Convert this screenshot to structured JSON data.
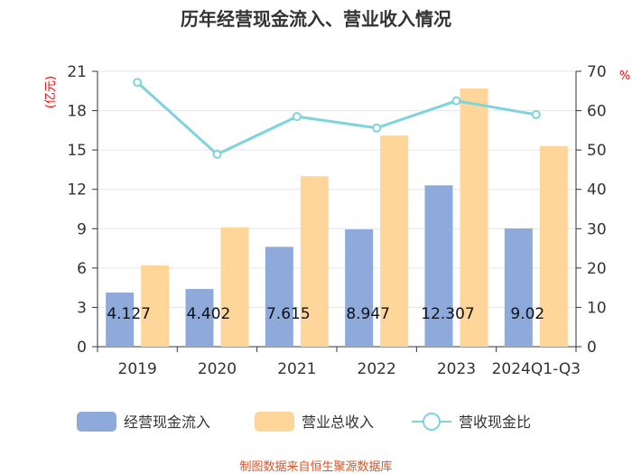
{
  "chart_data": {
    "type": "bar",
    "title": "历年经营现金流入、营业收入情况",
    "categories": [
      "2019",
      "2020",
      "2021",
      "2022",
      "2023",
      "2024Q1-Q3"
    ],
    "series": [
      {
        "name": "经营现金流入",
        "kind": "bar",
        "axis": "left",
        "color": "#8eaadb",
        "values": [
          4.127,
          4.402,
          7.615,
          8.947,
          12.307,
          9.02
        ],
        "labels": [
          "4.127",
          "4.402",
          "7.615",
          "8.947",
          "12.307",
          "9.02"
        ]
      },
      {
        "name": "营业总收入",
        "kind": "bar",
        "axis": "left",
        "color": "#ffd699",
        "values": [
          6.2,
          9.1,
          13.0,
          16.1,
          19.7,
          15.3
        ]
      },
      {
        "name": "营收现金比",
        "kind": "line",
        "axis": "right",
        "color": "#7fd3dc",
        "values": [
          67.2,
          48.9,
          58.5,
          55.6,
          62.5,
          59.0
        ]
      }
    ],
    "y_left": {
      "label": "(亿元)",
      "min": 0,
      "max": 21,
      "ticks": [
        0,
        3,
        6,
        9,
        12,
        15,
        18,
        21
      ]
    },
    "y_right": {
      "label": "%",
      "min": 0,
      "max": 70,
      "ticks": [
        0,
        10,
        20,
        30,
        40,
        50,
        60,
        70
      ]
    },
    "legend_position": "bottom"
  },
  "footer": "制图数据来自恒生聚源数据库"
}
